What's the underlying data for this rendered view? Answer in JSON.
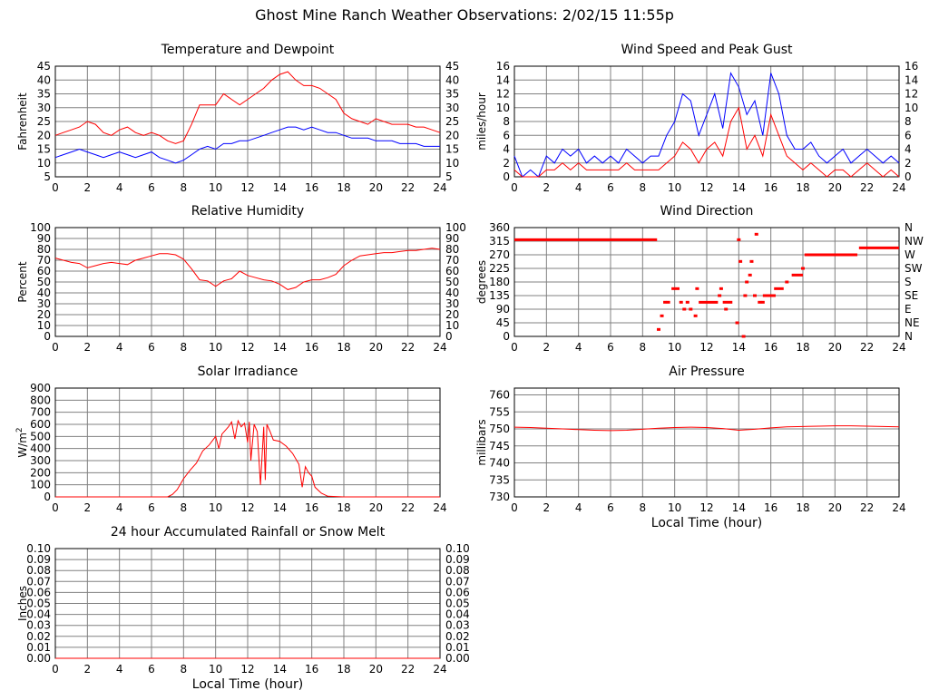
{
  "page_title": "Ghost Mine Ranch Weather Observations: 2/02/15 11:55p",
  "colors": {
    "red": "#ff0000",
    "blue": "#0000ff",
    "grid": "#808080",
    "axis": "#000000"
  },
  "chart_data": [
    {
      "id": "temperature",
      "type": "line",
      "title": "Temperature and Dewpoint",
      "xlabel": "",
      "ylabel": "Fahrenheit",
      "xlim": [
        0,
        24
      ],
      "ylim": [
        5,
        45
      ],
      "xticks": [
        0,
        2,
        4,
        6,
        8,
        10,
        12,
        14,
        16,
        18,
        20,
        22,
        24
      ],
      "yticks": [
        5,
        10,
        15,
        20,
        25,
        30,
        35,
        40,
        45
      ],
      "right_ticks": [
        "5",
        "10",
        "15",
        "20",
        "25",
        "30",
        "35",
        "40",
        "45"
      ],
      "series": [
        {
          "color": "#ff0000",
          "x": [
            0,
            0.5,
            1,
            1.5,
            2,
            2.5,
            3,
            3.5,
            4,
            4.5,
            5,
            5.5,
            6,
            6.5,
            7,
            7.5,
            8,
            8.5,
            9,
            9.5,
            10,
            10.5,
            11,
            11.5,
            12,
            12.5,
            13,
            13.5,
            14,
            14.5,
            15,
            15.5,
            16,
            16.5,
            17,
            17.5,
            18,
            18.5,
            19,
            19.5,
            20,
            20.5,
            21,
            21.5,
            22,
            22.5,
            23,
            23.5,
            24
          ],
          "y": [
            20,
            21,
            22,
            23,
            25,
            24,
            21,
            20,
            22,
            23,
            21,
            20,
            21,
            20,
            18,
            17,
            18,
            24,
            31,
            31,
            31,
            35,
            33,
            31,
            33,
            35,
            37,
            40,
            42,
            43,
            40,
            38,
            38,
            37,
            35,
            33,
            28,
            26,
            25,
            24,
            26,
            25,
            24,
            24,
            24,
            23,
            23,
            22,
            21
          ]
        },
        {
          "color": "#0000ff",
          "x": [
            0,
            0.5,
            1,
            1.5,
            2,
            2.5,
            3,
            3.5,
            4,
            4.5,
            5,
            5.5,
            6,
            6.5,
            7,
            7.5,
            8,
            8.5,
            9,
            9.5,
            10,
            10.5,
            11,
            11.5,
            12,
            12.5,
            13,
            13.5,
            14,
            14.5,
            15,
            15.5,
            16,
            16.5,
            17,
            17.5,
            18,
            18.5,
            19,
            19.5,
            20,
            20.5,
            21,
            21.5,
            22,
            22.5,
            23,
            23.5,
            24
          ],
          "y": [
            12,
            13,
            14,
            15,
            14,
            13,
            12,
            13,
            14,
            13,
            12,
            13,
            14,
            12,
            11,
            10,
            11,
            13,
            15,
            16,
            15,
            17,
            17,
            18,
            18,
            19,
            20,
            21,
            22,
            23,
            23,
            22,
            23,
            22,
            21,
            21,
            20,
            19,
            19,
            19,
            18,
            18,
            18,
            17,
            17,
            17,
            16,
            16,
            16
          ]
        }
      ]
    },
    {
      "id": "wind-speed",
      "type": "line",
      "title": "Wind Speed and Peak Gust",
      "xlabel": "",
      "ylabel": "miles/hour",
      "xlim": [
        0,
        24
      ],
      "ylim": [
        0,
        16
      ],
      "xticks": [
        0,
        2,
        4,
        6,
        8,
        10,
        12,
        14,
        16,
        18,
        20,
        22,
        24
      ],
      "yticks": [
        0,
        2,
        4,
        6,
        8,
        10,
        12,
        14,
        16
      ],
      "right_ticks": [
        "0",
        "2",
        "4",
        "6",
        "8",
        "10",
        "12",
        "14",
        "16"
      ],
      "series": [
        {
          "color": "#0000ff",
          "x": [
            0,
            0.5,
            1,
            1.5,
            2,
            2.5,
            3,
            3.5,
            4,
            4.5,
            5,
            5.5,
            6,
            6.5,
            7,
            7.5,
            8,
            8.5,
            9,
            9.5,
            10,
            10.5,
            11,
            11.5,
            12,
            12.5,
            13,
            13.5,
            14,
            14.5,
            15,
            15.5,
            16,
            16.5,
            17,
            17.5,
            18,
            18.5,
            19,
            19.5,
            20,
            20.5,
            21,
            21.5,
            22,
            22.5,
            23,
            23.5,
            24
          ],
          "y": [
            3,
            0,
            1,
            0,
            3,
            2,
            4,
            3,
            4,
            2,
            3,
            2,
            3,
            2,
            4,
            3,
            2,
            3,
            3,
            6,
            8,
            12,
            11,
            6,
            9,
            12,
            7,
            15,
            13,
            9,
            11,
            6,
            15,
            12,
            6,
            4,
            4,
            5,
            3,
            2,
            3,
            4,
            2,
            3,
            4,
            3,
            2,
            3,
            2
          ]
        },
        {
          "color": "#ff0000",
          "x": [
            0,
            0.5,
            1,
            1.5,
            2,
            2.5,
            3,
            3.5,
            4,
            4.5,
            5,
            5.5,
            6,
            6.5,
            7,
            7.5,
            8,
            8.5,
            9,
            9.5,
            10,
            10.5,
            11,
            11.5,
            12,
            12.5,
            13,
            13.5,
            14,
            14.5,
            15,
            15.5,
            16,
            16.5,
            17,
            17.5,
            18,
            18.5,
            19,
            19.5,
            20,
            20.5,
            21,
            21.5,
            22,
            22.5,
            23,
            23.5,
            24
          ],
          "y": [
            1,
            0,
            0,
            0,
            1,
            1,
            2,
            1,
            2,
            1,
            1,
            1,
            1,
            1,
            2,
            1,
            1,
            1,
            1,
            2,
            3,
            5,
            4,
            2,
            4,
            5,
            3,
            8,
            10,
            4,
            6,
            3,
            9,
            6,
            3,
            2,
            1,
            2,
            1,
            0,
            1,
            1,
            0,
            1,
            2,
            1,
            0,
            1,
            0
          ]
        }
      ]
    },
    {
      "id": "humidity",
      "type": "line",
      "title": "Relative Humidity",
      "xlabel": "",
      "ylabel": "Percent",
      "xlim": [
        0,
        24
      ],
      "ylim": [
        0,
        100
      ],
      "xticks": [
        0,
        2,
        4,
        6,
        8,
        10,
        12,
        14,
        16,
        18,
        20,
        22,
        24
      ],
      "yticks": [
        0,
        10,
        20,
        30,
        40,
        50,
        60,
        70,
        80,
        90,
        100
      ],
      "right_ticks": [
        "0",
        "10",
        "20",
        "30",
        "40",
        "50",
        "60",
        "70",
        "80",
        "90",
        "100"
      ],
      "series": [
        {
          "color": "#ff0000",
          "x": [
            0,
            0.5,
            1,
            1.5,
            2,
            2.5,
            3,
            3.5,
            4,
            4.5,
            5,
            5.5,
            6,
            6.5,
            7,
            7.5,
            8,
            8.5,
            9,
            9.5,
            10,
            10.5,
            11,
            11.5,
            12,
            12.5,
            13,
            13.5,
            14,
            14.5,
            15,
            15.5,
            16,
            16.5,
            17,
            17.5,
            18,
            18.5,
            19,
            19.5,
            20,
            20.5,
            21,
            21.5,
            22,
            22.5,
            23,
            23.5,
            24
          ],
          "y": [
            72,
            70,
            68,
            67,
            63,
            65,
            67,
            68,
            67,
            66,
            70,
            72,
            74,
            76,
            76,
            75,
            71,
            62,
            52,
            51,
            46,
            51,
            53,
            60,
            56,
            54,
            52,
            51,
            48,
            43,
            45,
            50,
            52,
            52,
            54,
            57,
            65,
            70,
            74,
            75,
            76,
            77,
            77,
            78,
            79,
            79,
            80,
            81,
            80
          ]
        }
      ]
    },
    {
      "id": "wind-direction",
      "type": "scatter",
      "title": "Wind Direction",
      "xlabel": "",
      "ylabel": "degrees",
      "xlim": [
        0,
        24
      ],
      "ylim": [
        0,
        360
      ],
      "xticks": [
        0,
        2,
        4,
        6,
        8,
        10,
        12,
        14,
        16,
        18,
        20,
        22,
        24
      ],
      "yticks": [
        0,
        45,
        90,
        135,
        180,
        225,
        270,
        315,
        360
      ],
      "right_ticks": [
        "N",
        "NE",
        "E",
        "SE",
        "S",
        "SW",
        "W",
        "NW",
        "N"
      ],
      "segments": [
        {
          "x0": 0,
          "x1": 8.9,
          "y": 320
        },
        {
          "x0": 9.8,
          "x1": 10.3,
          "y": 158
        },
        {
          "x0": 11.5,
          "x1": 12.7,
          "y": 113
        },
        {
          "x0": 13.0,
          "x1": 13.6,
          "y": 113
        },
        {
          "x0": 15.5,
          "x1": 16.3,
          "y": 135
        },
        {
          "x0": 16.2,
          "x1": 16.8,
          "y": 158
        },
        {
          "x0": 17.3,
          "x1": 18.0,
          "y": 203
        },
        {
          "x0": 18.1,
          "x1": 21.4,
          "y": 270
        },
        {
          "x0": 21.5,
          "x1": 24,
          "y": 293
        }
      ],
      "points": [
        {
          "x": 9.0,
          "y": 23
        },
        {
          "x": 9.2,
          "y": 68
        },
        {
          "x": 9.4,
          "y": 113
        },
        {
          "x": 9.6,
          "y": 113
        },
        {
          "x": 10.4,
          "y": 113
        },
        {
          "x": 10.6,
          "y": 90
        },
        {
          "x": 10.8,
          "y": 113
        },
        {
          "x": 11.0,
          "y": 90
        },
        {
          "x": 11.3,
          "y": 68
        },
        {
          "x": 11.4,
          "y": 158
        },
        {
          "x": 12.9,
          "y": 158
        },
        {
          "x": 12.8,
          "y": 135
        },
        {
          "x": 13.2,
          "y": 90
        },
        {
          "x": 13.9,
          "y": 45
        },
        {
          "x": 14.0,
          "y": 320
        },
        {
          "x": 14.1,
          "y": 248
        },
        {
          "x": 14.3,
          "y": 0
        },
        {
          "x": 14.4,
          "y": 135
        },
        {
          "x": 14.5,
          "y": 180
        },
        {
          "x": 14.7,
          "y": 203
        },
        {
          "x": 14.8,
          "y": 248
        },
        {
          "x": 15.0,
          "y": 135
        },
        {
          "x": 15.1,
          "y": 338
        },
        {
          "x": 15.3,
          "y": 113
        },
        {
          "x": 15.5,
          "y": 113
        },
        {
          "x": 17.0,
          "y": 180
        },
        {
          "x": 18.0,
          "y": 225
        }
      ]
    },
    {
      "id": "solar",
      "type": "line",
      "title": "Solar Irradiance",
      "xlabel": "",
      "ylabel": "W/m",
      "ylabel_sup": "2",
      "xlim": [
        0,
        24
      ],
      "ylim": [
        0,
        900
      ],
      "xticks": [
        0,
        2,
        4,
        6,
        8,
        10,
        12,
        14,
        16,
        18,
        20,
        22,
        24
      ],
      "yticks": [
        0,
        100,
        200,
        300,
        400,
        500,
        600,
        700,
        800,
        900
      ],
      "right_ticks": [],
      "series": [
        {
          "color": "#ff0000",
          "x": [
            0,
            6,
            7,
            7.3,
            7.6,
            8,
            8.4,
            8.8,
            9.2,
            9.6,
            10,
            10.2,
            10.4,
            10.8,
            11,
            11.2,
            11.4,
            11.6,
            11.8,
            12,
            12.1,
            12.2,
            12.4,
            12.6,
            12.8,
            13,
            13.1,
            13.2,
            13.4,
            13.6,
            14,
            14.4,
            14.8,
            15.2,
            15.4,
            15.6,
            15.8,
            16,
            16.2,
            16.6,
            17,
            18,
            24
          ],
          "y": [
            0,
            0,
            0,
            20,
            60,
            150,
            220,
            280,
            380,
            430,
            500,
            400,
            520,
            580,
            620,
            480,
            630,
            580,
            610,
            450,
            620,
            300,
            600,
            540,
            100,
            580,
            140,
            600,
            540,
            470,
            460,
            420,
            360,
            270,
            80,
            250,
            200,
            170,
            80,
            30,
            5,
            0,
            0
          ]
        }
      ]
    },
    {
      "id": "pressure",
      "type": "line",
      "title": "Air Pressure",
      "xlabel": "Local Time (hour)",
      "ylabel": "millibars",
      "xlim": [
        0,
        24
      ],
      "ylim": [
        730,
        762
      ],
      "xticks": [
        0,
        2,
        4,
        6,
        8,
        10,
        12,
        14,
        16,
        18,
        20,
        22,
        24
      ],
      "yticks": [
        730,
        735,
        740,
        745,
        750,
        755,
        760
      ],
      "right_ticks": [],
      "series": [
        {
          "color": "#ff0000",
          "x": [
            0,
            1,
            2,
            3,
            4,
            5,
            6,
            7,
            8,
            9,
            10,
            11,
            12,
            13,
            14,
            15,
            16,
            17,
            18,
            19,
            20,
            21,
            22,
            23,
            24
          ],
          "y": [
            750.5,
            750.4,
            750.2,
            750,
            749.8,
            749.6,
            749.5,
            749.6,
            749.9,
            750.2,
            750.4,
            750.5,
            750.4,
            750.1,
            749.6,
            749.9,
            750.3,
            750.6,
            750.7,
            750.8,
            750.9,
            750.9,
            750.8,
            750.7,
            750.6
          ]
        }
      ]
    },
    {
      "id": "rainfall",
      "type": "line",
      "title": "24 hour Accumulated Rainfall or Snow Melt",
      "xlabel": "Local Time (hour)",
      "ylabel": "Inches",
      "xlim": [
        0,
        24
      ],
      "ylim": [
        0,
        0.1
      ],
      "xticks": [
        0,
        2,
        4,
        6,
        8,
        10,
        12,
        14,
        16,
        18,
        20,
        22,
        24
      ],
      "yticks": [
        "0.00",
        "0.01",
        "0.02",
        "0.03",
        "0.04",
        "0.05",
        "0.06",
        "0.07",
        "0.08",
        "0.09",
        "0.10"
      ],
      "right_ticks": [
        "0.00",
        "0.01",
        "0.02",
        "0.03",
        "0.04",
        "0.05",
        "0.06",
        "0.07",
        "0.08",
        "0.09",
        "0.10"
      ],
      "series": [
        {
          "color": "#ff0000",
          "x": [
            0,
            24
          ],
          "y": [
            0,
            0
          ]
        }
      ]
    }
  ]
}
